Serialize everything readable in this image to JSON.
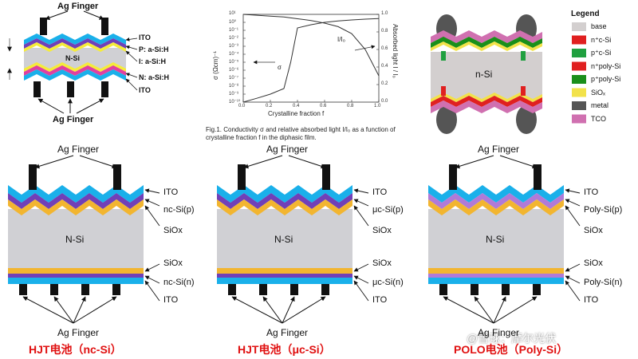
{
  "top_left": {
    "labels": {
      "ag_finger_top": "Ag Finger",
      "ito_top": "ITO",
      "p_layer": "P: a-Si:H",
      "i_layer": "I: a-Si:H",
      "n_layer": "N: a-Si:H",
      "ito_bottom": "ITO",
      "base": "N-Si",
      "ag_finger_bottom": "Ag Finger"
    }
  },
  "chart_data": {
    "type": "line",
    "x": [
      0,
      0.1,
      0.2,
      0.3,
      0.35,
      0.4,
      0.5,
      0.6,
      0.7,
      0.8,
      0.9,
      1.0
    ],
    "series": [
      {
        "name": "σ",
        "values": [
          1e-10,
          3e-10,
          1e-09,
          5e-09,
          1e-05,
          0.2,
          0.5,
          1,
          1.5,
          2,
          2.5,
          3
        ]
      },
      {
        "name": "I/I₀",
        "values": [
          1.0,
          0.99,
          0.98,
          0.97,
          0.96,
          0.95,
          0.93,
          0.9,
          0.86,
          0.78,
          0.6,
          0.3
        ]
      }
    ],
    "xlabel": "Crystalline fraction  f",
    "ylabel_left": "σ (Ωcm)⁻¹",
    "ylabel_right": "Absorbed light  I / I₀",
    "x_ticks": [
      "0.0",
      "0.2",
      "0.4",
      "0.6",
      "0.8",
      "1.0"
    ],
    "y_left_ticks": [
      "10¹",
      "10⁰",
      "10⁻¹",
      "10⁻²",
      "10⁻³",
      "10⁻⁴",
      "10⁻⁵",
      "10⁻⁶",
      "10⁻⁷",
      "10⁻⁸",
      "10⁻⁹",
      "10⁻¹⁰"
    ],
    "y_right_ticks": [
      "1.0",
      "0.8",
      "0.6",
      "0.4",
      "0.2",
      "0.0"
    ],
    "xlim": [
      0,
      1.0
    ],
    "ylim_right": [
      0,
      1.0
    ],
    "caption": "Fig.1.  Conductivity σ and relative absorbed light I/I₀ as a function of crystalline fraction f in the diphasic film."
  },
  "top_right": {
    "base": "n-Si",
    "legend_title": "Legend",
    "legend": [
      {
        "label": "base",
        "color": "#d3cfcf"
      },
      {
        "label": "n⁺c-Si",
        "color": "#e02020"
      },
      {
        "label": "p⁺c-Si",
        "color": "#20a040"
      },
      {
        "label": "n⁺poly-Si",
        "color": "#e02020"
      },
      {
        "label": "p⁺poly-Si",
        "color": "#1a8f1a"
      },
      {
        "label": "SiOₓ",
        "color": "#f2e24a"
      },
      {
        "label": "metal",
        "color": "#555555"
      },
      {
        "label": "TCO",
        "color": "#d070b0"
      }
    ]
  },
  "bottom": [
    {
      "title": "HJT电池（nc-Si）",
      "base": "N-Si",
      "ag_top": "Ag Finger",
      "ag_bottom": "Ag Finger",
      "labels": [
        "ITO",
        "nc-Si(p)",
        "SiOx",
        "SiOx",
        "nc-Si(n)",
        "ITO"
      ]
    },
    {
      "title": "HJT电池（μc-Si）",
      "base": "N-Si",
      "ag_top": "Ag Finger",
      "ag_bottom": "Ag Finger",
      "labels": [
        "ITO",
        "μc-Si(p)",
        "SiOx",
        "SiOx",
        "μc-Si(n)",
        "ITO"
      ]
    },
    {
      "title": "POLO电池（Poly-Si）",
      "base": "N-Si",
      "ag_top": "Ag Finger",
      "ag_bottom": "Ag Finger",
      "labels": [
        "ITO",
        "Poly-Si(p)",
        "SiOx",
        "SiOx",
        "Poly-Si(n)",
        "ITO"
      ]
    }
  ],
  "colors": {
    "ito": "#1ab0ea",
    "purple": "#7040b8",
    "lavender": "#b07ad8",
    "siox": "#f2b530",
    "base": "#d0d0d4",
    "finger": "#111111",
    "yellow": "#f5ec3a",
    "pink": "#e040a0",
    "tco": "#d070b0"
  },
  "watermark": "@雪球：摩尔光伏"
}
